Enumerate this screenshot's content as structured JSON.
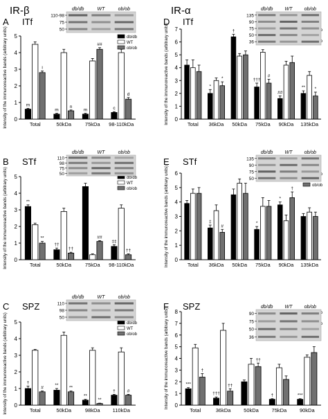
{
  "headers": {
    "left": "IR-β",
    "right": "IR-α"
  },
  "legend_labels": [
    "db/db",
    "WT",
    "ob/ob"
  ],
  "ylabel": "Intensity of the immunoreactive bands (arbitrary units)",
  "series_colors": {
    "db/db": "#000000",
    "WT": "#ffffff",
    "ob/ob": "#707070"
  },
  "chart_data": [
    {
      "panel": "A",
      "title": "ITf",
      "type": "bar",
      "categories": [
        "Total",
        "50kDa",
        "75kDa",
        "98-110kDa"
      ],
      "series": [
        {
          "name": "db/db",
          "values": [
            0.6,
            0.3,
            0.3,
            0.4
          ],
          "errors": [
            0.05,
            0.05,
            0.05,
            0.05
          ],
          "marks": [
            "m",
            "m",
            "m",
            "c"
          ]
        },
        {
          "name": "WT",
          "values": [
            4.5,
            4.0,
            3.5,
            4.0
          ],
          "errors": [
            0.15,
            0.2,
            0.15,
            0.2
          ],
          "marks": [
            "",
            "",
            "",
            ""
          ]
        },
        {
          "name": "ob/ob",
          "values": [
            2.8,
            0.5,
            4.2,
            1.2
          ],
          "errors": [
            0.1,
            0.05,
            0.1,
            0.1
          ],
          "marks": [
            "i",
            "n",
            "##",
            "d"
          ]
        }
      ],
      "ylim": [
        0,
        5
      ],
      "yticks": [
        0,
        1,
        2,
        3,
        4,
        5
      ],
      "blot": {
        "labels": [
          "db/db",
          "WT",
          "ob/ob"
        ],
        "markers": [
          "110-98",
          "75",
          "50"
        ]
      }
    },
    {
      "panel": "B",
      "title": "STf",
      "type": "bar",
      "categories": [
        "Total",
        "50kDa",
        "75kDa",
        "98-110kDa"
      ],
      "series": [
        {
          "name": "db/db",
          "values": [
            3.2,
            0.6,
            4.4,
            0.8
          ],
          "errors": [
            0.1,
            0.1,
            0.2,
            0.1
          ],
          "marks": [
            "**",
            "††",
            "",
            "‡‡"
          ]
        },
        {
          "name": "WT",
          "values": [
            2.1,
            2.9,
            0.3,
            3.1
          ],
          "errors": [
            0.1,
            0.2,
            0.05,
            0.2
          ],
          "marks": [
            "",
            "",
            "",
            ""
          ]
        },
        {
          "name": "ob/ob",
          "values": [
            1.0,
            0.4,
            1.1,
            0.3
          ],
          "errors": [
            0.1,
            0.05,
            0.05,
            0.05
          ],
          "marks": [
            "**",
            "††",
            "##",
            "††"
          ]
        }
      ],
      "ylim": [
        0,
        5
      ],
      "yticks": [
        0,
        1,
        2,
        3,
        4,
        5
      ],
      "blot": {
        "labels": [
          "db/db",
          "WT",
          "ob/ob"
        ],
        "markers": [
          "110",
          "98",
          "75",
          "50"
        ]
      }
    },
    {
      "panel": "C",
      "title": "SPZ",
      "type": "bar",
      "categories": [
        "Total",
        "50kDa",
        "98kDa",
        "110kDa"
      ],
      "series": [
        {
          "name": "db/db",
          "values": [
            1.0,
            0.9,
            0.3,
            0.6
          ],
          "errors": [
            0.15,
            0.1,
            0.05,
            0.05
          ],
          "marks": [
            "†",
            "**",
            "**",
            "†"
          ]
        },
        {
          "name": "WT",
          "values": [
            3.3,
            4.2,
            3.3,
            3.2
          ],
          "errors": [
            0.05,
            0.2,
            0.15,
            0.25
          ],
          "marks": [
            "",
            "",
            "",
            ""
          ]
        },
        {
          "name": "ob/ob",
          "values": [
            0.8,
            0.8,
            0.1,
            0.6
          ],
          "errors": [
            0.05,
            0.05,
            0.02,
            0.05
          ],
          "marks": [
            "#",
            "**",
            "**",
            "#"
          ]
        }
      ],
      "ylim": [
        0,
        5
      ],
      "yticks": [
        0,
        1,
        2,
        3,
        4,
        5
      ],
      "blot": {
        "labels": [
          "db/db",
          "WT",
          "ob/ob"
        ],
        "markers": [
          "110",
          "98",
          "50"
        ]
      }
    },
    {
      "panel": "D",
      "title": "ITf",
      "type": "bar",
      "categories": [
        "Total",
        "36kDa",
        "50kDa",
        "75kDa",
        "90kDa",
        "135kDa"
      ],
      "series": [
        {
          "name": "db/db",
          "values": [
            4.2,
            2.0,
            6.4,
            2.5,
            1.6,
            2.0
          ],
          "errors": [
            0.4,
            0.3,
            0.2,
            0.3,
            0.2,
            0.2
          ],
          "marks": [
            "",
            "*",
            "†",
            "†††",
            "##",
            "**"
          ]
        },
        {
          "name": "WT",
          "values": [
            4.0,
            3.0,
            4.9,
            5.2,
            4.2,
            3.4
          ],
          "errors": [
            0.6,
            0.2,
            0.2,
            0.2,
            0.3,
            0.3
          ],
          "marks": [
            "",
            "",
            "",
            "",
            "",
            ""
          ]
        },
        {
          "name": "ob/ob",
          "values": [
            3.7,
            2.6,
            5.0,
            2.8,
            4.4,
            1.8
          ],
          "errors": [
            0.5,
            0.3,
            0.3,
            0.3,
            0.5,
            0.3
          ],
          "marks": [
            "",
            "*",
            "",
            "#",
            "",
            "*"
          ]
        }
      ],
      "ylim": [
        0,
        7
      ],
      "yticks": [
        0,
        1,
        2,
        3,
        4,
        5,
        6,
        7
      ],
      "blot": {
        "labels": [
          "db/db",
          "WT",
          "ob/ob"
        ],
        "markers": [
          "135",
          "90",
          "75",
          "50",
          "36"
        ]
      }
    },
    {
      "panel": "E",
      "title": "STf",
      "type": "bar",
      "categories": [
        "Total",
        "36kDa",
        "50kDa",
        "75kDa",
        "90kDa",
        "135kDa"
      ],
      "series": [
        {
          "name": "db/db",
          "values": [
            3.9,
            2.2,
            4.5,
            2.1,
            3.8,
            3.0
          ],
          "errors": [
            0.2,
            0.2,
            0.4,
            0.2,
            0.2,
            0.2
          ],
          "marks": [
            "",
            "‡",
            "",
            "*",
            "*",
            ""
          ]
        },
        {
          "name": "WT",
          "values": [
            4.6,
            3.4,
            5.3,
            3.7,
            2.7,
            3.3
          ],
          "errors": [
            0.3,
            0.4,
            0.3,
            0.6,
            0.4,
            0.3
          ],
          "marks": [
            "",
            "",
            "",
            "",
            "",
            ""
          ]
        },
        {
          "name": "ob/ob",
          "values": [
            4.6,
            1.9,
            4.6,
            3.7,
            4.3,
            3.0
          ],
          "errors": [
            0.4,
            0.2,
            0.7,
            0.4,
            0.4,
            0.3
          ],
          "marks": [
            "",
            "#",
            "",
            "",
            "†",
            ""
          ]
        }
      ],
      "ylim": [
        0,
        6
      ],
      "yticks": [
        0,
        1,
        2,
        3,
        4,
        5,
        6
      ],
      "blot": {
        "labels": [
          "db/db",
          "WT",
          "ob/ob"
        ],
        "markers": [
          "135",
          "90",
          "75",
          "50"
        ]
      }
    },
    {
      "panel": "F",
      "title": "SPZ",
      "type": "bar",
      "categories": [
        "Total",
        "36kDa",
        "50kDa",
        "75kDa",
        "90kDa"
      ],
      "series": [
        {
          "name": "db/db",
          "values": [
            1.4,
            0.6,
            2.0,
            0.5,
            0.5
          ],
          "errors": [
            0.1,
            0.1,
            0.15,
            0.05,
            0.05
          ],
          "marks": [
            "***",
            "†††",
            "",
            "†",
            "***"
          ]
        },
        {
          "name": "WT",
          "values": [
            4.9,
            6.4,
            3.5,
            3.2,
            4.1
          ],
          "errors": [
            0.3,
            0.6,
            0.5,
            0.3,
            0.2
          ],
          "marks": [
            "",
            "",
            "",
            "",
            ""
          ]
        },
        {
          "name": "ob/ob",
          "values": [
            2.4,
            1.2,
            3.3,
            2.2,
            4.5
          ],
          "errors": [
            0.3,
            0.2,
            0.3,
            0.3,
            0.5
          ],
          "marks": [
            "†",
            "††",
            "††",
            "",
            ""
          ]
        }
      ],
      "ylim": [
        0,
        8
      ],
      "yticks": [
        0,
        1,
        2,
        3,
        4,
        5,
        6,
        7,
        8
      ],
      "blot": {
        "labels": [
          "db/db",
          "WT",
          "ob/ob"
        ],
        "markers": [
          "90",
          "75",
          "50",
          "36"
        ]
      }
    }
  ]
}
